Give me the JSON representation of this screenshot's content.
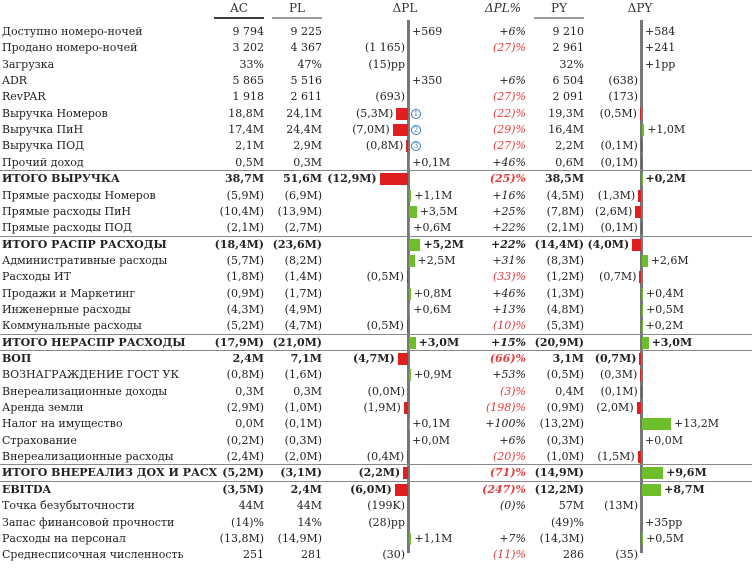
{
  "columns": {
    "ac": "AC",
    "pl": "PL",
    "dpl": "ΔPL",
    "dplp": "ΔPL%",
    "py": "PY",
    "dpy": "ΔPY"
  },
  "colors": {
    "positive": "#6cbf2a",
    "negative": "#e02020",
    "axis": "#777777",
    "circle": "#3a7fc1",
    "header_ac": "#3a3a3a",
    "header_pl": "#9a9a9a",
    "header_py": "#9a9a9a"
  },
  "chart_data": {
    "type": "table",
    "rows": [
      {
        "label": "Доступно номеро-ночей",
        "ac": "9 794",
        "pl": "9 225",
        "dpl_label": "+569",
        "dpl_val": 0,
        "dplp": "+6%",
        "py": "9 210",
        "dpy_label": "+584",
        "dpy_val": 0
      },
      {
        "label": "Продано номеро-ночей",
        "ac": "3 202",
        "pl": "4 367",
        "dpl_label": "(1 165)",
        "dpl_val": 0,
        "dplp": "(27)%",
        "dplp_red": true,
        "py": "2 961",
        "dpy_label": "+241",
        "dpy_val": 0
      },
      {
        "label": "Загрузка",
        "ac": "33%",
        "pl": "47%",
        "dpl_label": "(15)pp",
        "dpl_val": 0,
        "dplp": "",
        "py": "32%",
        "dpy_label": "+1pp",
        "dpy_val": 0
      },
      {
        "label": "ADR",
        "ac": "5 865",
        "pl": "5 516",
        "dpl_label": "+350",
        "dpl_val": 0,
        "dplp": "+6%",
        "py": "6 504",
        "dpy_label": "(638)",
        "dpy_val": 0
      },
      {
        "label": "RevPAR",
        "ac": "1 918",
        "pl": "2 611",
        "dpl_label": "(693)",
        "dpl_val": 0,
        "dplp": "(27)%",
        "dplp_red": true,
        "py": "2 091",
        "dpy_label": "(173)",
        "dpy_val": 0
      },
      {
        "label": "Выручка Номеров",
        "ac": "18,8M",
        "pl": "24,1M",
        "dpl_label": "(5,3M)",
        "dpl_val": -5.3,
        "dpl_circle": "1",
        "dplp": "(22)%",
        "dplp_red": true,
        "py": "19,3M",
        "dpy_label": "(0,5M)",
        "dpy_val": -0.5
      },
      {
        "label": "Выручка ПиН",
        "ac": "17,4M",
        "pl": "24,4M",
        "dpl_label": "(7,0M)",
        "dpl_val": -7.0,
        "dpl_circle": "2",
        "dplp": "(29)%",
        "dplp_red": true,
        "py": "16,4M",
        "dpy_label": "+1,0M",
        "dpy_val": 1.0
      },
      {
        "label": "Выручка ПОД",
        "ac": "2,1M",
        "pl": "2,9M",
        "dpl_label": "(0,8M)",
        "dpl_val": -0.8,
        "dpl_circle": "3",
        "dplp": "(27)%",
        "dplp_red": true,
        "py": "2,2M",
        "dpy_label": "(0,1M)",
        "dpy_val": -0.1
      },
      {
        "label": "Прочий доход",
        "ac": "0,5M",
        "pl": "0,3M",
        "dpl_label": "+0,1M",
        "dpl_val": 0.1,
        "dplp": "+46%",
        "py": "0,6M",
        "dpy_label": "(0,1M)",
        "dpy_val": -0.1
      },
      {
        "label": "ИТОГО ВЫРУЧКА",
        "bold": true,
        "sep": true,
        "ac": "38,7M",
        "pl": "51,6M",
        "dpl_label": "(12,9M)",
        "dpl_val": -12.9,
        "dplp": "(25)%",
        "dplp_red": true,
        "py": "38,5M",
        "dpy_label": "+0,2M",
        "dpy_val": 0.2
      },
      {
        "label": "Прямые расходы Номеров",
        "ac": "(5,9M)",
        "pl": "(6,9M)",
        "dpl_label": "+1,1M",
        "dpl_val": 1.1,
        "dplp": "+16%",
        "py": "(4,5M)",
        "dpy_label": "(1,3M)",
        "dpy_val": -1.3
      },
      {
        "label": "Прямые расходы ПиН",
        "ac": "(10,4M)",
        "pl": "(13,9M)",
        "dpl_label": "+3,5M",
        "dpl_val": 3.5,
        "dplp": "+25%",
        "py": "(7,8M)",
        "dpy_label": "(2,6M)",
        "dpy_val": -2.6
      },
      {
        "label": "Прямые расходы ПОД",
        "ac": "(2,1M)",
        "pl": "(2,7M)",
        "dpl_label": "+0,6M",
        "dpl_val": 0.6,
        "dplp": "+22%",
        "py": "(2,1M)",
        "dpy_label": "(0,1M)",
        "dpy_val": -0.1
      },
      {
        "label": "ИТОГО РАСПР РАСХОДЫ",
        "bold": true,
        "sep": true,
        "ac": "(18,4M)",
        "pl": "(23,6M)",
        "dpl_label": "+5,2M",
        "dpl_val": 5.2,
        "dplp": "+22%",
        "py": "(14,4M)",
        "dpy_label": "(4,0M)",
        "dpy_val": -4.0
      },
      {
        "label": "Административные расходы",
        "ac": "(5,7M)",
        "pl": "(8,2M)",
        "dpl_label": "+2,5M",
        "dpl_val": 2.5,
        "dplp": "+31%",
        "py": "(8,3M)",
        "dpy_label": "+2,6M",
        "dpy_val": 2.6
      },
      {
        "label": "Расходы ИТ",
        "ac": "(1,8M)",
        "pl": "(1,4M)",
        "dpl_label": "(0,5M)",
        "dpl_val": -0.5,
        "dplp": "(33)%",
        "dplp_red": true,
        "py": "(1,2M)",
        "dpy_label": "(0,7M)",
        "dpy_val": -0.7
      },
      {
        "label": "Продажи и Маркетинг",
        "ac": "(0,9M)",
        "pl": "(1,7M)",
        "dpl_label": "+0,8M",
        "dpl_val": 0.8,
        "dplp": "+46%",
        "py": "(1,3M)",
        "dpy_label": "+0,4M",
        "dpy_val": 0.4
      },
      {
        "label": "Инженерные расходы",
        "ac": "(4,3M)",
        "pl": "(4,9M)",
        "dpl_label": "+0,6M",
        "dpl_val": 0.6,
        "dplp": "+13%",
        "py": "(4,8M)",
        "dpy_label": "+0,5M",
        "dpy_val": 0.5
      },
      {
        "label": "Коммунальные расходы",
        "ac": "(5,2M)",
        "pl": "(4,7M)",
        "dpl_label": "(0,5M)",
        "dpl_val": -0.5,
        "dplp": "(10)%",
        "dplp_red": true,
        "py": "(5,3M)",
        "dpy_label": "+0,2M",
        "dpy_val": 0.2
      },
      {
        "label": "ИТОГО НЕРАСПР РАСХОДЫ",
        "bold": true,
        "sep": true,
        "ac": "(17,9M)",
        "pl": "(21,0M)",
        "dpl_label": "+3,0M",
        "dpl_val": 3.0,
        "dplp": "+15%",
        "py": "(20,9M)",
        "dpy_label": "+3,0M",
        "dpy_val": 3.0
      },
      {
        "label": "ВОП",
        "bold": true,
        "sep": true,
        "ac": "2,4M",
        "pl": "7,1M",
        "dpl_label": "(4,7M)",
        "dpl_val": -4.7,
        "dplp": "(66)%",
        "dplp_red": true,
        "py": "3,1M",
        "dpy_label": "(0,7M)",
        "dpy_val": -0.7
      },
      {
        "label": "ВОЗНАГРАЖДЕНИЕ ГОСТ УК",
        "ac": "(0,8M)",
        "pl": "(1,6M)",
        "dpl_label": "+0,9M",
        "dpl_val": 0.9,
        "dplp": "+53%",
        "py": "(0,5M)",
        "dpy_label": "(0,3M)",
        "dpy_val": -0.3
      },
      {
        "label": "Внереализационные доходы",
        "ac": "0,3M",
        "pl": "0,3M",
        "dpl_label": "(0,0M)",
        "dpl_val": 0,
        "dplp": "(3)%",
        "dplp_red": true,
        "py": "0,4M",
        "dpy_label": "(0,1M)",
        "dpy_val": -0.1
      },
      {
        "label": "Аренда земли",
        "ac": "(2,9M)",
        "pl": "(1,0M)",
        "dpl_label": "(1,9M)",
        "dpl_val": -1.9,
        "dplp": "(198)%",
        "dplp_red": true,
        "py": "(0,9M)",
        "dpy_label": "(2,0M)",
        "dpy_val": -2.0
      },
      {
        "label": "Налог на имущество",
        "ac": "0,0M",
        "pl": "(0,1M)",
        "dpl_label": "+0,1M",
        "dpl_val": 0.1,
        "dplp": "+100%",
        "py": "(13,2M)",
        "dpy_label": "+13,2M",
        "dpy_val": 13.2
      },
      {
        "label": "Страхование",
        "ac": "(0,2M)",
        "pl": "(0,3M)",
        "dpl_label": "+0,0M",
        "dpl_val": 0,
        "dplp": "+6%",
        "py": "(0,3M)",
        "dpy_label": "+0,0M",
        "dpy_val": 0
      },
      {
        "label": "Внереализационные расходы",
        "ac": "(2,4M)",
        "pl": "(2,0M)",
        "dpl_label": "(0,4M)",
        "dpl_val": -0.4,
        "dplp": "(20)%",
        "dplp_red": true,
        "py": "(1,0M)",
        "dpy_label": "(1,5M)",
        "dpy_val": -1.5
      },
      {
        "label": "ИТОГО ВНЕРЕАЛИЗ ДОХ И РАСХ",
        "bold": true,
        "sep": true,
        "ac": "(5,2M)",
        "pl": "(3,1M)",
        "dpl_label": "(2,2M)",
        "dpl_val": -2.2,
        "dplp": "(71)%",
        "dplp_red": true,
        "py": "(14,9M)",
        "dpy_label": "+9,6M",
        "dpy_val": 9.6
      },
      {
        "label": "EBITDA",
        "bold": true,
        "sep": true,
        "ac": "(3,5M)",
        "pl": "2,4M",
        "dpl_label": "(6,0M)",
        "dpl_val": -6.0,
        "dplp": "(247)%",
        "dplp_red": true,
        "py": "(12,2M)",
        "dpy_label": "+8,7M",
        "dpy_val": 8.7
      },
      {
        "label": "Точка безубыточности",
        "ac": "44M",
        "pl": "44M",
        "dpl_label": "(199K)",
        "dpl_val": 0,
        "dplp": "(0)%",
        "py": "57M",
        "dpy_label": "(13M)",
        "dpy_val": 0
      },
      {
        "label": "Запас финансовой прочности",
        "ac": "(14)%",
        "pl": "14%",
        "dpl_label": "(28)pp",
        "dpl_val": 0,
        "dplp": "",
        "py": "(49)%",
        "dpy_label": "+35pp",
        "dpy_val": 0
      },
      {
        "label": "Расходы на персонал",
        "ac": "(13,8M)",
        "pl": "(14,9M)",
        "dpl_label": "+1,1M",
        "dpl_val": 1.1,
        "dplp": "+7%",
        "py": "(14,3M)",
        "dpy_label": "+0,5M",
        "dpy_val": 0.5
      },
      {
        "label": "Среднесписочная численность",
        "ac": "251",
        "pl": "281",
        "dpl_label": "(30)",
        "dpl_val": 0,
        "dplp": "(11)%",
        "dplp_red": true,
        "py": "286",
        "dpy_label": "(35)",
        "dpy_val": 0
      }
    ]
  }
}
